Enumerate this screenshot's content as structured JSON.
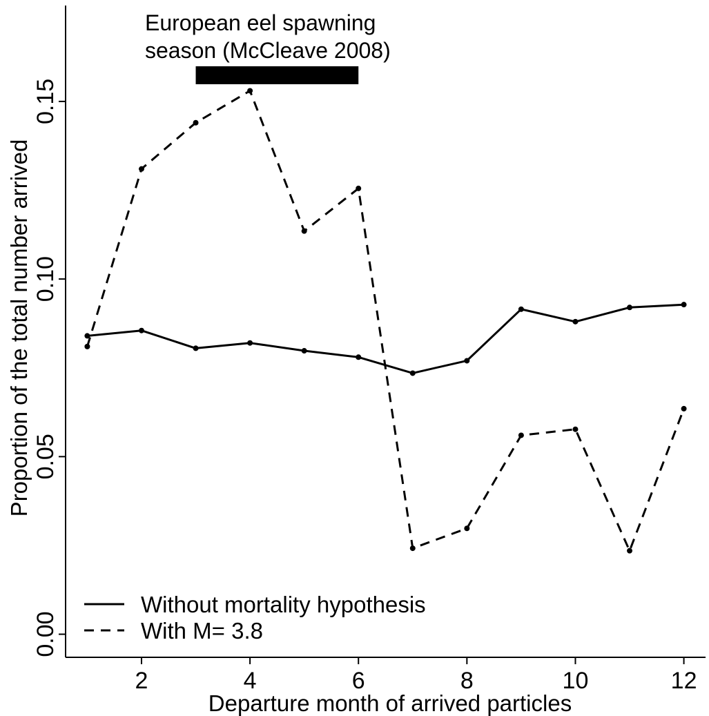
{
  "chart_data": {
    "type": "line",
    "xlabel": "Departure month of arrived particles",
    "ylabel": "Proportion of the total number arrived",
    "xlim": [
      0.6,
      12.4
    ],
    "ylim": [
      -0.0065,
      0.177
    ],
    "xticks": [
      2,
      4,
      6,
      8,
      10,
      12
    ],
    "yticks": [
      0.0,
      0.05,
      0.1,
      0.15
    ],
    "xtick_labels": [
      "2",
      "4",
      "6",
      "8",
      "10",
      "12"
    ],
    "ytick_labels": [
      "0.00",
      "0.05",
      "0.10",
      "0.15"
    ],
    "grid": false,
    "legend_position": "bottom-left",
    "x": [
      1,
      2,
      3,
      4,
      5,
      6,
      7,
      8,
      9,
      10,
      11,
      12
    ],
    "series": [
      {
        "name": "Without mortality hypothesis",
        "style": "solid",
        "values": [
          0.084,
          0.0855,
          0.0805,
          0.082,
          0.0798,
          0.078,
          0.0735,
          0.077,
          0.0915,
          0.088,
          0.092,
          0.0928
        ]
      },
      {
        "name": "With M= 3.8",
        "style": "dashed",
        "values": [
          0.081,
          0.131,
          0.144,
          0.153,
          0.1135,
          0.1255,
          0.0242,
          0.0298,
          0.056,
          0.0577,
          0.0235,
          0.0635
        ]
      }
    ],
    "annotation": {
      "lines": [
        "European eel spawning",
        "season (McCleave 2008)"
      ],
      "bar_range": [
        3,
        6
      ]
    }
  }
}
